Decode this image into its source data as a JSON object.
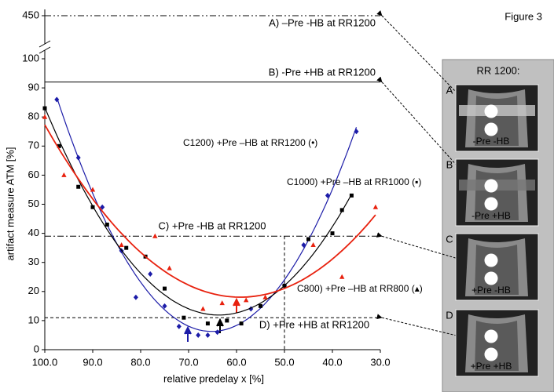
{
  "chart_data": {
    "type": "scatter",
    "figure_label": "Figure 3",
    "xlabel": "relative predelay x [%]",
    "ylabel": "artifact measure ATM [%]",
    "xlim": [
      100,
      30
    ],
    "ylim": [
      0,
      100
    ],
    "y_break_tick": 450,
    "xticks": [
      {
        "value": 100,
        "label": "100.0"
      },
      {
        "value": 90,
        "label": "90.0"
      },
      {
        "value": 80,
        "label": "80.0"
      },
      {
        "value": 70,
        "label": "70.0"
      },
      {
        "value": 60,
        "label": "60.0"
      },
      {
        "value": 50,
        "label": "50.0"
      },
      {
        "value": 40,
        "label": "40.0"
      },
      {
        "value": 30,
        "label": "30.0"
      }
    ],
    "yticks": [
      0,
      10,
      20,
      30,
      40,
      50,
      60,
      70,
      80,
      90,
      100
    ],
    "fit": "poly2",
    "series": [
      {
        "name": "C1200) +Pre –HB at RR1200 (•)",
        "color": "#1c1ca8",
        "marker": "diamond",
        "x": [
          97.5,
          93,
          88,
          84,
          81,
          78,
          75,
          72,
          68,
          66,
          64,
          57,
          50,
          46,
          41,
          35
        ],
        "values": [
          86,
          66,
          49,
          34,
          18,
          26,
          15,
          8,
          5,
          5,
          6,
          14,
          22,
          36,
          53,
          75
        ]
      },
      {
        "name": "C1000) +Pre –HB at RR1000 (▪)",
        "color": "#000000",
        "marker": "square",
        "x": [
          100,
          97,
          93,
          90,
          87,
          83,
          79,
          75,
          71,
          66,
          62,
          59,
          55,
          50,
          45,
          40,
          38,
          36
        ],
        "values": [
          83,
          70,
          56,
          49,
          43,
          35,
          32,
          21,
          11,
          9,
          10,
          9,
          15,
          22,
          38,
          40,
          48,
          53
        ]
      },
      {
        "name": "C800) +Pre –HB at RR800 (▴)",
        "color": "#e8210e",
        "marker": "triangle",
        "x": [
          100,
          96,
          90,
          84,
          77,
          74,
          67,
          63,
          58,
          54,
          44,
          38,
          31
        ],
        "values": [
          80,
          60,
          55,
          36,
          39,
          28,
          14,
          16,
          17,
          18,
          36,
          25,
          49
        ]
      }
    ],
    "reference_lines": [
      {
        "label": "A) –Pre -HB at RR1200",
        "value": 450,
        "style": "dash-dot-dot"
      },
      {
        "label": "B) -Pre +HB at RR1200",
        "value": 92,
        "style": "solid"
      },
      {
        "label": "C) +Pre -HB at RR1200",
        "value": 39,
        "style": "dash-dot"
      },
      {
        "label": "D) +Pre +HB at RR1200",
        "value": 11,
        "style": "dashed"
      }
    ],
    "vertical_line": {
      "value": 50,
      "top": 39
    },
    "inset": {
      "title": "RR 1200:",
      "panels": [
        {
          "letter": "A",
          "caption": "-Pre -HB"
        },
        {
          "letter": "B",
          "caption": "-Pre +HB"
        },
        {
          "letter": "C",
          "caption": "+Pre -HB"
        },
        {
          "letter": "D",
          "caption": "+Pre +HB"
        }
      ]
    }
  }
}
